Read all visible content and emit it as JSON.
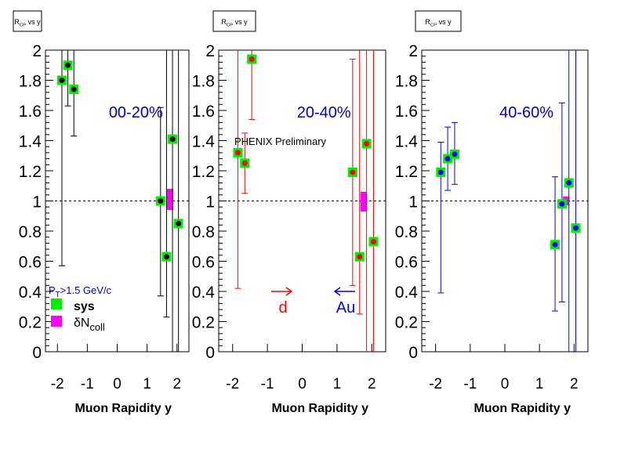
{
  "colors": {
    "sys": "#00ee00",
    "ncoll": "#ff00ff",
    "black": "#000000",
    "red": "#ff0000",
    "blue": "#0000ff"
  },
  "chart_data": [
    {
      "type": "scatter",
      "title": "R_CP vs y",
      "centrality": "00-20%",
      "xlabel": "Muon Rapidity y",
      "ylabel": "",
      "xlim": [
        -2.4,
        2.4
      ],
      "ylim": [
        0,
        2
      ],
      "xticks": [
        "-2",
        "-1",
        "0",
        "1",
        "2"
      ],
      "yticks": [
        "0",
        "0.2",
        "0.4",
        "0.6",
        "0.8",
        "1",
        "1.2",
        "1.4",
        "1.6",
        "1.8",
        "2"
      ],
      "marker_color": "#000000",
      "error_color": "#000000",
      "reference_line": 1,
      "points": [
        {
          "x": -1.85,
          "y": 1.8,
          "err_lo": 1.23,
          "err_hi": 0.3
        },
        {
          "x": -1.65,
          "y": 1.9,
          "err_lo": 0.27,
          "err_hi": 0.3
        },
        {
          "x": -1.45,
          "y": 1.74,
          "err_lo": 0.31,
          "err_hi": 0.3
        },
        {
          "x": 1.45,
          "y": 1.0,
          "err_lo": 0.63,
          "err_hi": 0.62
        },
        {
          "x": 1.65,
          "y": 0.63,
          "err_lo": 0.4,
          "err_hi": 1.5
        },
        {
          "x": 1.85,
          "y": 1.41,
          "err_lo": 1.5,
          "err_hi": 0.7
        },
        {
          "x": 2.05,
          "y": 0.85,
          "err_lo": 1.0,
          "err_hi": 1.2
        }
      ],
      "ncoll_band": {
        "x": 1.77,
        "ylo": 0.94,
        "yhi": 1.08
      },
      "legend": {
        "pt_label": "P_T>1.5 GeV/c",
        "sys_label": "sys",
        "ncoll_label": "δN_coll"
      }
    },
    {
      "type": "scatter",
      "title": "R_CP vs y",
      "centrality": "20-40%",
      "xlabel": "Muon Rapidity y",
      "ylabel": "",
      "xlim": [
        -2.4,
        2.4
      ],
      "ylim": [
        0,
        2
      ],
      "xticks": [
        "-2",
        "-1",
        "0",
        "1",
        "2"
      ],
      "yticks": [
        "0",
        "0.2",
        "0.4",
        "0.6",
        "0.8",
        "1",
        "1.2",
        "1.4",
        "1.6",
        "1.8",
        "2"
      ],
      "marker_color": "#ff0000",
      "error_color": "#ff0000",
      "reference_line": 1,
      "points": [
        {
          "x": -1.85,
          "y": 1.32,
          "err_lo": 0.9,
          "err_hi": 1.0
        },
        {
          "x": -1.65,
          "y": 1.25,
          "err_lo": 0.2,
          "err_hi": 0.2
        },
        {
          "x": -1.45,
          "y": 1.94,
          "err_lo": 0.4,
          "err_hi": 0.3
        },
        {
          "x": 1.45,
          "y": 1.19,
          "err_lo": 0.75,
          "err_hi": 0.75
        },
        {
          "x": 1.65,
          "y": 0.63,
          "err_lo": 0.38,
          "err_hi": 1.5
        },
        {
          "x": 1.85,
          "y": 1.38,
          "err_lo": 1.5,
          "err_hi": 0.7
        },
        {
          "x": 2.05,
          "y": 0.73,
          "err_lo": 0.8,
          "err_hi": 1.3
        }
      ],
      "ncoll_band": {
        "x": 1.77,
        "ylo": 0.93,
        "yhi": 1.06
      },
      "annotations": {
        "preliminary": "PHENIX Preliminary",
        "d_label": "d",
        "au_label": "Au"
      }
    },
    {
      "type": "scatter",
      "title": "R_CP vs y",
      "centrality": "40-60%",
      "xlabel": "Muon Rapidity y",
      "ylabel": "",
      "xlim": [
        -2.4,
        2.4
      ],
      "ylim": [
        0,
        2
      ],
      "xticks": [
        "-2",
        "-1",
        "0",
        "1",
        "2"
      ],
      "yticks": [
        "0",
        "0.2",
        "0.4",
        "0.6",
        "0.8",
        "1",
        "1.2",
        "1.4",
        "1.6",
        "1.8",
        "2"
      ],
      "marker_color": "#0000ff",
      "error_color": "#0000ff",
      "reference_line": 1,
      "points": [
        {
          "x": -1.85,
          "y": 1.19,
          "err_lo": 0.8,
          "err_hi": 0.2
        },
        {
          "x": -1.65,
          "y": 1.28,
          "err_lo": 0.21,
          "err_hi": 0.21
        },
        {
          "x": -1.45,
          "y": 1.31,
          "err_lo": 0.2,
          "err_hi": 0.21
        },
        {
          "x": 1.45,
          "y": 0.71,
          "err_lo": 0.44,
          "err_hi": 0.45
        },
        {
          "x": 1.65,
          "y": 0.98,
          "err_lo": 0.65,
          "err_hi": 0.67
        },
        {
          "x": 1.85,
          "y": 1.12,
          "err_lo": 1.2,
          "err_hi": 0.9
        },
        {
          "x": 2.05,
          "y": 0.82,
          "err_lo": 0.9,
          "err_hi": 1.3
        }
      ],
      "ncoll_band": {
        "x": 1.77,
        "ylo": 0.97,
        "yhi": 1.03
      }
    }
  ]
}
